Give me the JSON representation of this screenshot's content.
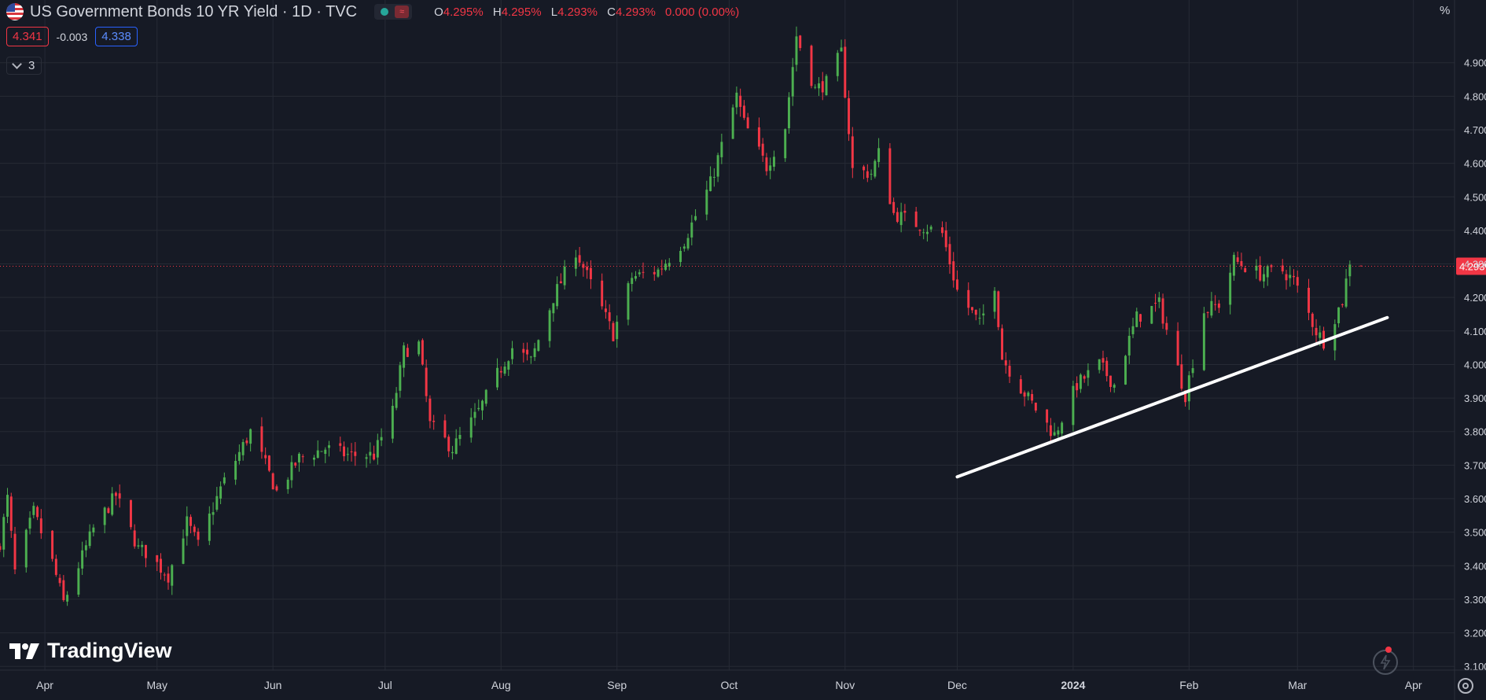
{
  "header": {
    "symbol_title": "US Government Bonds 10 YR Yield · 1D · TVC",
    "status_icon": "market-status-dot-icon",
    "ohlc": {
      "open_label": "O",
      "open": "4.295%",
      "high_label": "H",
      "high": "4.295%",
      "low_label": "L",
      "low": "4.293%",
      "close_label": "C",
      "close": "4.293%",
      "change": "0.000 (0.00%)"
    },
    "bid": "4.341",
    "spread": "-0.003",
    "ask": "4.338",
    "indicators_count": "3",
    "scale_unit": "%"
  },
  "branding": {
    "logo_text": "TradingView"
  },
  "colors": {
    "background": "#161a25",
    "up": "#4caf50",
    "down": "#f23645",
    "grid": "#262a35",
    "trendline": "#ffffff",
    "last_price": "#f23645"
  },
  "chart_data": {
    "type": "candlestick",
    "title": "US Government Bonds 10 YR Yield · 1D · TVC",
    "xlabel": "",
    "ylabel": "%",
    "ylim": [
      3.07,
      5.04
    ],
    "x_range": [
      "2023-03-20",
      "2024-04-12"
    ],
    "y_ticks": [
      "3.100%",
      "3.200%",
      "3.300%",
      "3.400%",
      "3.500%",
      "3.600%",
      "3.700%",
      "3.800%",
      "3.900%",
      "4.000%",
      "4.100%",
      "4.200%",
      "4.300%",
      "4.400%",
      "4.500%",
      "4.600%",
      "4.700%",
      "4.800%",
      "4.900%"
    ],
    "y_tick_values": [
      3.1,
      3.2,
      3.3,
      3.4,
      3.5,
      3.6,
      3.7,
      3.8,
      3.9,
      4.0,
      4.1,
      4.2,
      4.3,
      4.4,
      4.5,
      4.6,
      4.7,
      4.8,
      4.9
    ],
    "x_ticks": [
      {
        "label": "Apr",
        "date": "2023-04-01"
      },
      {
        "label": "May",
        "date": "2023-05-01"
      },
      {
        "label": "Jun",
        "date": "2023-06-01"
      },
      {
        "label": "Jul",
        "date": "2023-07-01"
      },
      {
        "label": "Aug",
        "date": "2023-08-01"
      },
      {
        "label": "Sep",
        "date": "2023-09-01"
      },
      {
        "label": "Oct",
        "date": "2023-10-01"
      },
      {
        "label": "Nov",
        "date": "2023-11-01"
      },
      {
        "label": "Dec",
        "date": "2023-12-01"
      },
      {
        "label": "2024",
        "date": "2024-01-01"
      },
      {
        "label": "Feb",
        "date": "2024-02-01"
      },
      {
        "label": "Mar",
        "date": "2024-03-01"
      },
      {
        "label": "Apr",
        "date": "2024-04-01"
      }
    ],
    "close_anchors": [
      {
        "date": "2023-03-20",
        "value": 3.47
      },
      {
        "date": "2023-03-22",
        "value": 3.6
      },
      {
        "date": "2023-03-24",
        "value": 3.38
      },
      {
        "date": "2023-03-29",
        "value": 3.56
      },
      {
        "date": "2023-04-03",
        "value": 3.41
      },
      {
        "date": "2023-04-06",
        "value": 3.29
      },
      {
        "date": "2023-04-14",
        "value": 3.51
      },
      {
        "date": "2023-04-20",
        "value": 3.61
      },
      {
        "date": "2023-04-26",
        "value": 3.45
      },
      {
        "date": "2023-04-28",
        "value": 3.44
      },
      {
        "date": "2023-05-04",
        "value": 3.37
      },
      {
        "date": "2023-05-09",
        "value": 3.53
      },
      {
        "date": "2023-05-12",
        "value": 3.46
      },
      {
        "date": "2023-05-18",
        "value": 3.63
      },
      {
        "date": "2023-05-26",
        "value": 3.8
      },
      {
        "date": "2023-05-30",
        "value": 3.7
      },
      {
        "date": "2023-06-02",
        "value": 3.62
      },
      {
        "date": "2023-06-08",
        "value": 3.72
      },
      {
        "date": "2023-06-15",
        "value": 3.75
      },
      {
        "date": "2023-06-21",
        "value": 3.73
      },
      {
        "date": "2023-06-28",
        "value": 3.73
      },
      {
        "date": "2023-07-03",
        "value": 3.86
      },
      {
        "date": "2023-07-06",
        "value": 4.04
      },
      {
        "date": "2023-07-10",
        "value": 4.06
      },
      {
        "date": "2023-07-13",
        "value": 3.82
      },
      {
        "date": "2023-07-19",
        "value": 3.75
      },
      {
        "date": "2023-07-26",
        "value": 3.86
      },
      {
        "date": "2023-07-31",
        "value": 3.97
      },
      {
        "date": "2023-08-04",
        "value": 4.05
      },
      {
        "date": "2023-08-09",
        "value": 4.01
      },
      {
        "date": "2023-08-15",
        "value": 4.2
      },
      {
        "date": "2023-08-21",
        "value": 4.34
      },
      {
        "date": "2023-08-25",
        "value": 4.24
      },
      {
        "date": "2023-08-31",
        "value": 4.09
      },
      {
        "date": "2023-09-05",
        "value": 4.26
      },
      {
        "date": "2023-09-12",
        "value": 4.28
      },
      {
        "date": "2023-09-19",
        "value": 4.37
      },
      {
        "date": "2023-09-26",
        "value": 4.54
      },
      {
        "date": "2023-10-03",
        "value": 4.8
      },
      {
        "date": "2023-10-05",
        "value": 4.72
      },
      {
        "date": "2023-10-11",
        "value": 4.59
      },
      {
        "date": "2023-10-16",
        "value": 4.71
      },
      {
        "date": "2023-10-19",
        "value": 4.98
      },
      {
        "date": "2023-10-24",
        "value": 4.82
      },
      {
        "date": "2023-10-27",
        "value": 4.84
      },
      {
        "date": "2023-10-31",
        "value": 4.93
      },
      {
        "date": "2023-11-03",
        "value": 4.58
      },
      {
        "date": "2023-11-08",
        "value": 4.57
      },
      {
        "date": "2023-11-10",
        "value": 4.63
      },
      {
        "date": "2023-11-14",
        "value": 4.45
      },
      {
        "date": "2023-11-20",
        "value": 4.42
      },
      {
        "date": "2023-11-27",
        "value": 4.39
      },
      {
        "date": "2023-12-01",
        "value": 4.22
      },
      {
        "date": "2023-12-07",
        "value": 4.12
      },
      {
        "date": "2023-12-11",
        "value": 4.24
      },
      {
        "date": "2023-12-13",
        "value": 4.02
      },
      {
        "date": "2023-12-18",
        "value": 3.93
      },
      {
        "date": "2023-12-27",
        "value": 3.79
      },
      {
        "date": "2024-01-02",
        "value": 3.94
      },
      {
        "date": "2024-01-08",
        "value": 4.0
      },
      {
        "date": "2024-01-12",
        "value": 3.94
      },
      {
        "date": "2024-01-18",
        "value": 4.14
      },
      {
        "date": "2024-01-24",
        "value": 4.18
      },
      {
        "date": "2024-01-31",
        "value": 3.91
      },
      {
        "date": "2024-02-05",
        "value": 4.16
      },
      {
        "date": "2024-02-09",
        "value": 4.18
      },
      {
        "date": "2024-02-13",
        "value": 4.31
      },
      {
        "date": "2024-02-20",
        "value": 4.27
      },
      {
        "date": "2024-02-26",
        "value": 4.28
      },
      {
        "date": "2024-02-29",
        "value": 4.25
      },
      {
        "date": "2024-03-06",
        "value": 4.1
      },
      {
        "date": "2024-03-08",
        "value": 4.07
      },
      {
        "date": "2024-03-13",
        "value": 4.19
      },
      {
        "date": "2024-03-15",
        "value": 4.31
      },
      {
        "date": "2024-03-18",
        "value": 4.29
      }
    ],
    "last": {
      "date": "2024-03-18",
      "open": 4.295,
      "high": 4.295,
      "low": 4.293,
      "close": 4.293
    },
    "last_price_label": "4.293%",
    "trendline": {
      "start": {
        "date": "2023-12-01",
        "value": 3.665
      },
      "end": {
        "date": "2024-03-25",
        "value": 4.14
      }
    },
    "grid": true
  }
}
